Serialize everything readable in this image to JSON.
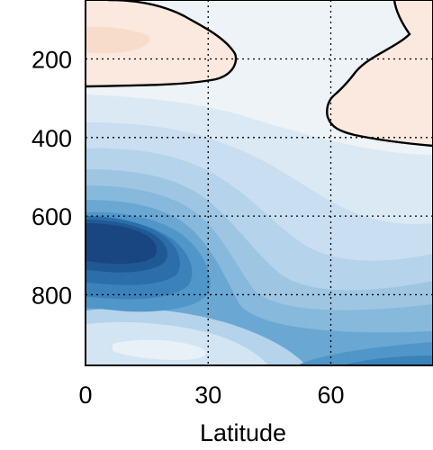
{
  "chart_data": {
    "type": "heatmap",
    "subtype": "filled-contour",
    "title": "",
    "xlabel": "Latitude",
    "ylabel": "",
    "xlim": [
      0,
      85
    ],
    "ylim": [
      980,
      50
    ],
    "y_inverted": true,
    "xticks": [
      0,
      30,
      60
    ],
    "yticks": [
      200,
      400,
      600,
      800
    ],
    "grid": true,
    "colormap": "red-blue diverging (blue = negative, pale red = positive)",
    "colors": {
      "positive_fill": "#fbe8de",
      "positive_core": "#f8dccb",
      "background_fill": "#eef3f7",
      "zero_contour": "#000000",
      "blue_levels": [
        "#dbe9f4",
        "#c9def0",
        "#b5d3ea",
        "#9ec6e3",
        "#86b9dc",
        "#6aa7d2",
        "#5096c8",
        "#3b82bb",
        "#2b6ea9",
        "#1f5994",
        "#194680"
      ]
    },
    "features": [
      {
        "name": "positive-region-upper-left",
        "sign": "positive",
        "lat_range": [
          0,
          38
        ],
        "level_range": [
          60,
          230
        ]
      },
      {
        "name": "positive-region-upper-right",
        "sign": "positive",
        "lat_range": [
          61,
          85
        ],
        "level_range": [
          60,
          390
        ]
      },
      {
        "name": "negative-maximum",
        "sign": "negative",
        "lat_center": 12,
        "level_center": 650
      },
      {
        "name": "negative-lower-right",
        "sign": "negative",
        "lat_range": [
          55,
          85
        ],
        "level_range": [
          550,
          980
        ]
      }
    ]
  }
}
